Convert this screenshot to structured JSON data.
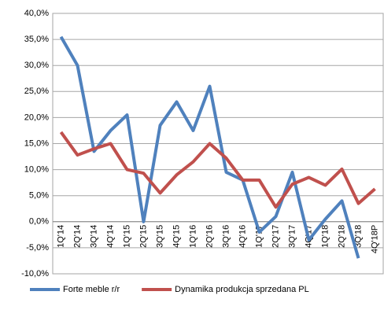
{
  "chart_data": {
    "type": "line",
    "categories": [
      "1Q'14",
      "2Q'14",
      "3Q'14",
      "4Q'14",
      "1Q'15",
      "2Q'15",
      "3Q'15",
      "4Q'15",
      "1Q'16",
      "2Q'16",
      "3Q'16",
      "4Q'16",
      "1Q'17",
      "2Q'17",
      "3Q'17",
      "4Q'17",
      "1Q'18",
      "2Q'18",
      "3Q'18",
      "4Q'18P"
    ],
    "series": [
      {
        "name": "Forte meble r/r",
        "color": "#4f81bd",
        "values": [
          35.5,
          30,
          13.5,
          17.5,
          20.5,
          0,
          18.5,
          23,
          17.5,
          26,
          9.5,
          8,
          -2,
          1,
          9.5,
          -3.5,
          0.5,
          4,
          -7,
          null
        ]
      },
      {
        "name": "Dynamika produkcja sprzedana PL",
        "color": "#c0504d",
        "values": [
          17.2,
          12.8,
          14,
          15,
          10,
          9.3,
          5.5,
          9,
          11.5,
          15,
          12.2,
          8,
          8,
          2.8,
          7.2,
          8.5,
          7,
          10.1,
          3.5,
          6.3
        ]
      }
    ],
    "ylim": [
      -10,
      40
    ],
    "yticks": [
      {
        "value": -10,
        "label": "-10,0%"
      },
      {
        "value": -5,
        "label": "-5,0%"
      },
      {
        "value": 0,
        "label": "0,0%"
      },
      {
        "value": 5,
        "label": "5,0%"
      },
      {
        "value": 10,
        "label": "10,0%"
      },
      {
        "value": 15,
        "label": "15,0%"
      },
      {
        "value": 20,
        "label": "20,0%"
      },
      {
        "value": 25,
        "label": "25,0%"
      },
      {
        "value": 30,
        "label": "30,0%"
      },
      {
        "value": 35,
        "label": "35,0%"
      },
      {
        "value": 40,
        "label": "40,0%"
      }
    ],
    "grid": true,
    "legend": "bottom"
  }
}
